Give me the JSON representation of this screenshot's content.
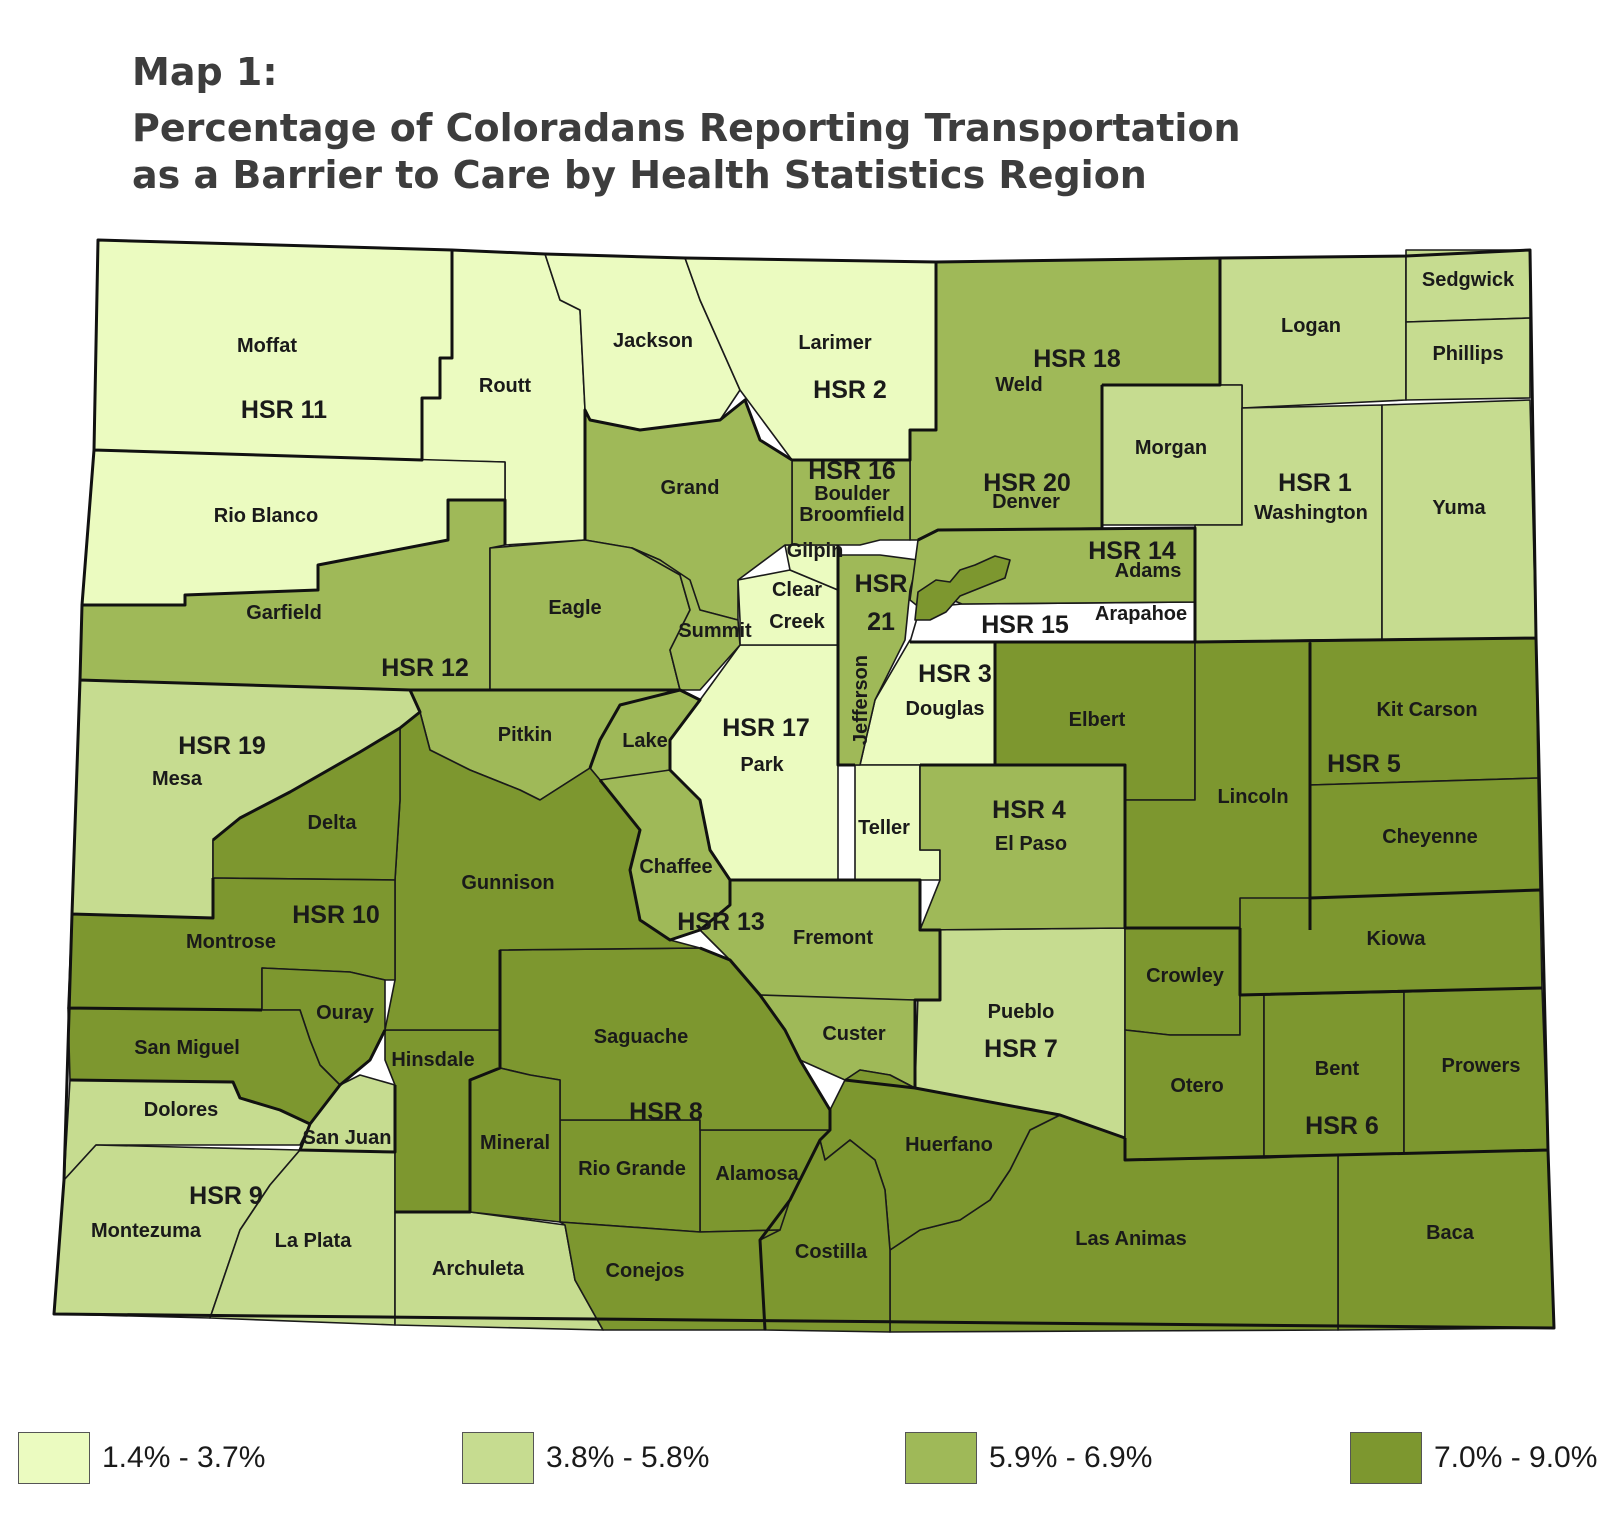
{
  "title": {
    "line1": "Map  1:",
    "line2": "Percentage of Coloradans Reporting Transportation",
    "line3": "as a Barrier to Care by Health Statistics Region"
  },
  "colors": {
    "c1": "#ebfbc0",
    "c2": "#c6dc90",
    "c3": "#9fb958",
    "c4": "#7d972f",
    "white": "#ffffff",
    "border": "#1a1a1a"
  },
  "legend": [
    {
      "label": "1.4% - 3.7%",
      "color": "#ebfbc0"
    },
    {
      "label": "3.8% - 5.8%",
      "color": "#c6dc90"
    },
    {
      "label": "5.9% - 6.9%",
      "color": "#9fb958"
    },
    {
      "label": "7.0% - 9.0%",
      "color": "#7d972f"
    }
  ],
  "counties": {
    "moffat": "Moffat",
    "routt": "Routt",
    "jackson": "Jackson",
    "larimer": "Larimer",
    "weld": "Weld",
    "logan": "Logan",
    "sedgwick": "Sedgwick",
    "phillips": "Phillips",
    "morgan": "Morgan",
    "washington": "Washington",
    "yuma": "Yuma",
    "rio_blanco": "Rio Blanco",
    "grand": "Grand",
    "boulder": "Boulder",
    "broomfield": "Broomfield",
    "denver": "Denver",
    "gilpin": "Gilpin",
    "clear_creek1": "Clear",
    "clear_creek2": "Creek",
    "adams": "Adams",
    "arapahoe": "Arapahoe",
    "garfield": "Garfield",
    "eagle": "Eagle",
    "summit": "Summit",
    "jefferson": "Jefferson",
    "douglas": "Douglas",
    "elbert": "Elbert",
    "kit_carson": "Kit Carson",
    "mesa": "Mesa",
    "pitkin": "Pitkin",
    "lake": "Lake",
    "park": "Park",
    "lincoln": "Lincoln",
    "cheyenne": "Cheyenne",
    "delta": "Delta",
    "gunnison": "Gunnison",
    "teller": "Teller",
    "el_paso": "El Paso",
    "chaffee": "Chaffee",
    "montrose": "Montrose",
    "fremont": "Fremont",
    "kiowa": "Kiowa",
    "crowley": "Crowley",
    "pueblo": "Pueblo",
    "ouray": "Ouray",
    "custer": "Custer",
    "saguache": "Saguache",
    "san_miguel": "San Miguel",
    "hinsdale": "Hinsdale",
    "otero": "Otero",
    "bent": "Bent",
    "prowers": "Prowers",
    "dolores": "Dolores",
    "san_juan": "San Juan",
    "mineral": "Mineral",
    "rio_grande": "Rio Grande",
    "alamosa": "Alamosa",
    "huerfano": "Huerfano",
    "montezuma": "Montezuma",
    "la_plata": "La Plata",
    "archuleta": "Archuleta",
    "conejos": "Conejos",
    "costilla": "Costilla",
    "las_animas": "Las Animas",
    "baca": "Baca"
  },
  "regions": {
    "hsr1": "HSR 1",
    "hsr2": "HSR 2",
    "hsr3": "HSR 3",
    "hsr4": "HSR 4",
    "hsr5": "HSR 5",
    "hsr6": "HSR 6",
    "hsr7": "HSR 7",
    "hsr8": "HSR 8",
    "hsr9": "HSR 9",
    "hsr10": "HSR 10",
    "hsr11": "HSR 11",
    "hsr12": "HSR 12",
    "hsr13": "HSR 13",
    "hsr14": "HSR 14",
    "hsr15": "HSR 15",
    "hsr16": "HSR 16",
    "hsr17": "HSR 17",
    "hsr18": "HSR 18",
    "hsr19": "HSR 19",
    "hsr20": "HSR 20",
    "hsr21a": "HSR",
    "hsr21b": "21"
  }
}
